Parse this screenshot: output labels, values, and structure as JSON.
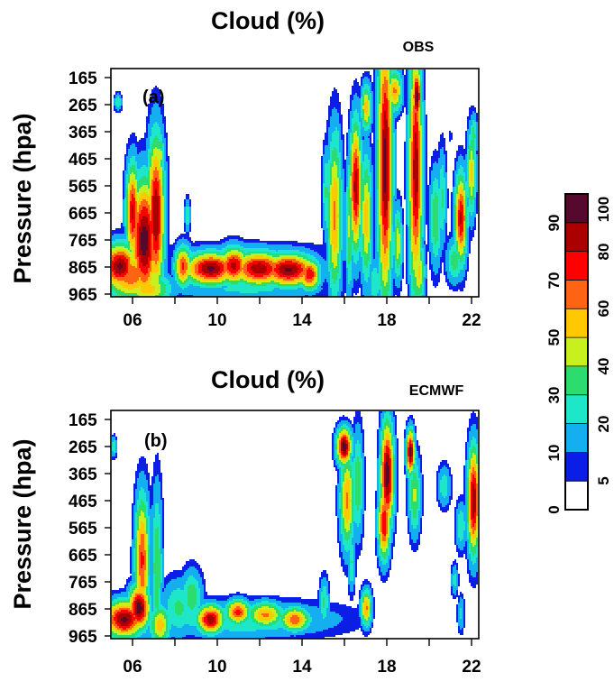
{
  "chart_data": [
    {
      "type": "heatmap",
      "panel_label": "(a)",
      "title": "Cloud (%)",
      "source": "OBS",
      "xlabel": "",
      "ylabel": "Pressure (hpa)",
      "xticklabels": [
        "06",
        "10",
        "14",
        "18",
        "22"
      ],
      "xtick_values": [
        6,
        10,
        14,
        18,
        22
      ],
      "xlim": [
        5.0,
        22.4
      ],
      "yticklabels": [
        "165",
        "265",
        "365",
        "465",
        "565",
        "665",
        "765",
        "865",
        "965"
      ],
      "ylim": [
        965,
        165
      ],
      "blobs": [
        {
          "x": 5.3,
          "p": 280,
          "sx": 0.13,
          "sp": 22,
          "v": 28
        },
        {
          "x": 5.4,
          "p": 860,
          "sx": 0.55,
          "sp": 55,
          "v": 92
        },
        {
          "x": 5.9,
          "p": 890,
          "sx": 0.9,
          "sp": 65,
          "v": 68
        },
        {
          "x": 6.0,
          "p": 670,
          "sx": 0.22,
          "sp": 120,
          "v": 82
        },
        {
          "x": 6.55,
          "p": 770,
          "sx": 0.45,
          "sp": 150,
          "v": 96
        },
        {
          "x": 7.1,
          "p": 680,
          "sx": 0.28,
          "sp": 190,
          "v": 90
        },
        {
          "x": 7.3,
          "p": 470,
          "sx": 0.14,
          "sp": 60,
          "v": 45
        },
        {
          "x": 6.7,
          "p": 940,
          "sx": 0.8,
          "sp": 40,
          "v": 55
        },
        {
          "x": 8.4,
          "p": 860,
          "sx": 0.28,
          "sp": 50,
          "v": 72
        },
        {
          "x": 8.6,
          "p": 680,
          "sx": 0.1,
          "sp": 40,
          "v": 30
        },
        {
          "x": 9.7,
          "p": 868,
          "sx": 0.85,
          "sp": 40,
          "v": 92
        },
        {
          "x": 10.8,
          "p": 858,
          "sx": 0.5,
          "sp": 45,
          "v": 84
        },
        {
          "x": 12.0,
          "p": 868,
          "sx": 0.9,
          "sp": 42,
          "v": 88
        },
        {
          "x": 13.4,
          "p": 872,
          "sx": 0.9,
          "sp": 40,
          "v": 92
        },
        {
          "x": 14.4,
          "p": 888,
          "sx": 0.35,
          "sp": 38,
          "v": 80
        },
        {
          "x": 11.5,
          "p": 940,
          "sx": 2.8,
          "sp": 30,
          "v": 22
        },
        {
          "x": 11.4,
          "p": 810,
          "sx": 2.6,
          "sp": 25,
          "v": 22
        },
        {
          "x": 15.2,
          "p": 600,
          "sx": 0.14,
          "sp": 110,
          "v": 32
        },
        {
          "x": 15.6,
          "p": 680,
          "sx": 0.24,
          "sp": 200,
          "v": 62
        },
        {
          "x": 15.7,
          "p": 400,
          "sx": 0.1,
          "sp": 50,
          "v": 25
        },
        {
          "x": 16.3,
          "p": 720,
          "sx": 0.13,
          "sp": 170,
          "v": 42
        },
        {
          "x": 16.6,
          "p": 580,
          "sx": 0.2,
          "sp": 160,
          "v": 86
        },
        {
          "x": 17.1,
          "p": 690,
          "sx": 0.2,
          "sp": 160,
          "v": 55
        },
        {
          "x": 17.1,
          "p": 300,
          "sx": 0.18,
          "sp": 60,
          "v": 55
        },
        {
          "x": 17.5,
          "p": 920,
          "sx": 0.2,
          "sp": 60,
          "v": 30
        },
        {
          "x": 18.0,
          "p": 500,
          "sx": 0.24,
          "sp": 330,
          "v": 94
        },
        {
          "x": 18.45,
          "p": 240,
          "sx": 0.25,
          "sp": 50,
          "v": 62
        },
        {
          "x": 18.6,
          "p": 780,
          "sx": 0.15,
          "sp": 90,
          "v": 48
        },
        {
          "x": 19.5,
          "p": 260,
          "sx": 0.15,
          "sp": 70,
          "v": 95
        },
        {
          "x": 19.45,
          "p": 520,
          "sx": 0.22,
          "sp": 300,
          "v": 88
        },
        {
          "x": 19.6,
          "p": 880,
          "sx": 0.2,
          "sp": 80,
          "v": 52
        },
        {
          "x": 20.4,
          "p": 690,
          "sx": 0.2,
          "sp": 120,
          "v": 40
        },
        {
          "x": 20.7,
          "p": 620,
          "sx": 0.15,
          "sp": 120,
          "v": 32
        },
        {
          "x": 21.3,
          "p": 840,
          "sx": 0.28,
          "sp": 55,
          "v": 36
        },
        {
          "x": 21.6,
          "p": 690,
          "sx": 0.2,
          "sp": 110,
          "v": 82
        },
        {
          "x": 22.1,
          "p": 530,
          "sx": 0.15,
          "sp": 110,
          "v": 52
        },
        {
          "x": 22.2,
          "p": 400,
          "sx": 0.12,
          "sp": 55,
          "v": 36
        },
        {
          "x": 21.1,
          "p": 400,
          "sx": 0.06,
          "sp": 22,
          "v": 9
        }
      ]
    },
    {
      "type": "heatmap",
      "panel_label": "(b)",
      "title": "Cloud (%)",
      "source": "ECMWF",
      "xlabel": "",
      "ylabel": "Pressure (hpa)",
      "xticklabels": [
        "06",
        "10",
        "14",
        "18",
        "22"
      ],
      "xtick_values": [
        6,
        10,
        14,
        18,
        22
      ],
      "xlim": [
        5.0,
        22.4
      ],
      "yticklabels": [
        "165",
        "265",
        "365",
        "465",
        "565",
        "665",
        "765",
        "865",
        "965"
      ],
      "ylim": [
        965,
        165
      ],
      "blobs": [
        {
          "x": 5.1,
          "p": 290,
          "sx": 0.1,
          "sp": 25,
          "v": 30
        },
        {
          "x": 5.6,
          "p": 900,
          "sx": 0.65,
          "sp": 45,
          "v": 92
        },
        {
          "x": 6.3,
          "p": 860,
          "sx": 0.35,
          "sp": 55,
          "v": 96
        },
        {
          "x": 6.45,
          "p": 690,
          "sx": 0.24,
          "sp": 160,
          "v": 72
        },
        {
          "x": 6.3,
          "p": 545,
          "sx": 0.12,
          "sp": 60,
          "v": 38
        },
        {
          "x": 7.15,
          "p": 720,
          "sx": 0.18,
          "sp": 200,
          "v": 40
        },
        {
          "x": 7.3,
          "p": 920,
          "sx": 0.35,
          "sp": 50,
          "v": 55
        },
        {
          "x": 8.2,
          "p": 860,
          "sx": 0.6,
          "sp": 70,
          "v": 32
        },
        {
          "x": 8.8,
          "p": 820,
          "sx": 0.35,
          "sp": 65,
          "v": 38
        },
        {
          "x": 9.7,
          "p": 900,
          "sx": 0.45,
          "sp": 35,
          "v": 88
        },
        {
          "x": 11.0,
          "p": 875,
          "sx": 0.4,
          "sp": 30,
          "v": 75
        },
        {
          "x": 12.3,
          "p": 885,
          "sx": 0.6,
          "sp": 32,
          "v": 62
        },
        {
          "x": 13.7,
          "p": 900,
          "sx": 0.5,
          "sp": 30,
          "v": 68
        },
        {
          "x": 11.2,
          "p": 900,
          "sx": 3.2,
          "sp": 45,
          "v": 30
        },
        {
          "x": 15.1,
          "p": 840,
          "sx": 0.16,
          "sp": 60,
          "v": 32
        },
        {
          "x": 16.05,
          "p": 290,
          "sx": 0.25,
          "sp": 45,
          "v": 96
        },
        {
          "x": 16.2,
          "p": 480,
          "sx": 0.24,
          "sp": 120,
          "v": 62
        },
        {
          "x": 16.7,
          "p": 420,
          "sx": 0.18,
          "sp": 130,
          "v": 40
        },
        {
          "x": 16.4,
          "p": 700,
          "sx": 0.12,
          "sp": 70,
          "v": 32
        },
        {
          "x": 17.1,
          "p": 860,
          "sx": 0.18,
          "sp": 45,
          "v": 62
        },
        {
          "x": 18.1,
          "p": 390,
          "sx": 0.22,
          "sp": 130,
          "v": 96
        },
        {
          "x": 17.95,
          "p": 560,
          "sx": 0.2,
          "sp": 90,
          "v": 80
        },
        {
          "x": 19.2,
          "p": 310,
          "sx": 0.14,
          "sp": 55,
          "v": 95
        },
        {
          "x": 19.4,
          "p": 460,
          "sx": 0.2,
          "sp": 100,
          "v": 42
        },
        {
          "x": 20.8,
          "p": 430,
          "sx": 0.22,
          "sp": 50,
          "v": 28
        },
        {
          "x": 21.6,
          "p": 570,
          "sx": 0.18,
          "sp": 60,
          "v": 30
        },
        {
          "x": 21.3,
          "p": 760,
          "sx": 0.12,
          "sp": 40,
          "v": 24
        },
        {
          "x": 21.6,
          "p": 880,
          "sx": 0.12,
          "sp": 45,
          "v": 22
        },
        {
          "x": 22.2,
          "p": 480,
          "sx": 0.2,
          "sp": 130,
          "v": 90
        }
      ]
    }
  ],
  "colorbar": {
    "levels": [
      0,
      5,
      10,
      20,
      30,
      40,
      50,
      60,
      70,
      80,
      90,
      100
    ],
    "colors": [
      "#ffffff",
      "#0a1ee6",
      "#14aff0",
      "#1ee6c8",
      "#2ddc6e",
      "#c8f01e",
      "#ffc800",
      "#ff6414",
      "#ff0000",
      "#aa0000",
      "#550a2d"
    ],
    "labels_left": [
      "0",
      "10",
      "30",
      "50",
      "70",
      "90"
    ],
    "labels_right": [
      "5",
      "20",
      "40",
      "60",
      "80",
      "100"
    ]
  }
}
